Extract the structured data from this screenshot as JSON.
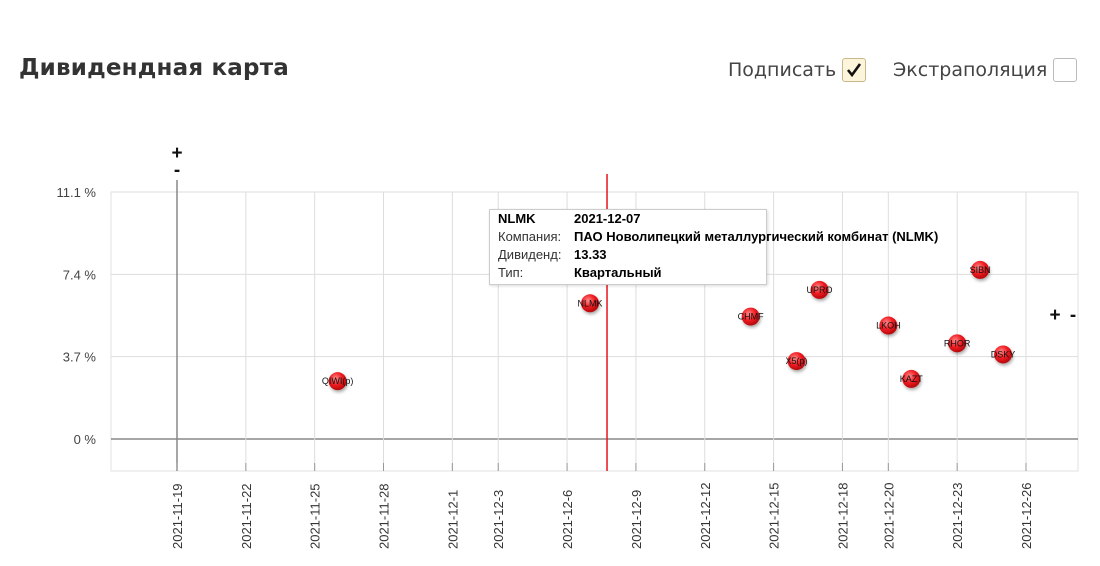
{
  "header": {
    "title": "Дивидендная карта",
    "sign_label": "Подписать",
    "sign_checked": true,
    "extrapolation_label": "Экстраполяция",
    "extrapolation_checked": false
  },
  "chart_data": {
    "type": "scatter",
    "y_ticks": [
      "11.1 %",
      "7.4 %",
      "3.7 %",
      "0 %"
    ],
    "y_tick_values": [
      11.1,
      7.4,
      3.7,
      0
    ],
    "ylim": [
      -1.2,
      11.1
    ],
    "x_ticks": [
      "2021-11-19",
      "2021-11-22",
      "2021-11-25",
      "2021-11-28",
      "2021-12-1",
      "2021-12-3",
      "2021-12-6",
      "2021-12-9",
      "2021-12-12",
      "2021-12-15",
      "2021-12-18",
      "2021-12-20",
      "2021-12-23",
      "2021-12-26"
    ],
    "points": [
      {
        "label": "QIWI(p)",
        "x": "2021-11-26",
        "y": 2.6
      },
      {
        "label": "NLMK",
        "x": "2021-12-07",
        "y": 6.1
      },
      {
        "label": "CHMF",
        "x": "2021-12-14",
        "y": 5.5
      },
      {
        "label": "X5(p)",
        "x": "2021-12-16",
        "y": 3.5
      },
      {
        "label": "UPRO",
        "x": "2021-12-17",
        "y": 6.7
      },
      {
        "label": "LKOH",
        "x": "2021-12-20",
        "y": 5.1
      },
      {
        "label": "KAZT",
        "x": "2021-12-21",
        "y": 2.7
      },
      {
        "label": "RHOR",
        "x": "2021-12-23",
        "y": 4.3
      },
      {
        "label": "SIBN",
        "x": "2021-12-24",
        "y": 7.6
      },
      {
        "label": "DSKY",
        "x": "2021-12-25",
        "y": 3.8
      }
    ],
    "today_marker": "2021-12-07",
    "left_markers": [
      "+",
      "-"
    ],
    "right_markers": [
      "+",
      "-"
    ],
    "colors": {
      "point": "#e8141a",
      "marker_line": "#e8141a",
      "grid": "#dddddd",
      "axis": "#777777"
    }
  },
  "tooltip": {
    "ticker": "NLMK",
    "date": "2021-12-07",
    "company_label": "Компания:",
    "company": "ПАО Новолипецкий металлургический комбинат (NLMK)",
    "dividend_label": "Дивиденд:",
    "dividend": "13.33",
    "type_label": "Тип:",
    "type": "Квартальный"
  }
}
